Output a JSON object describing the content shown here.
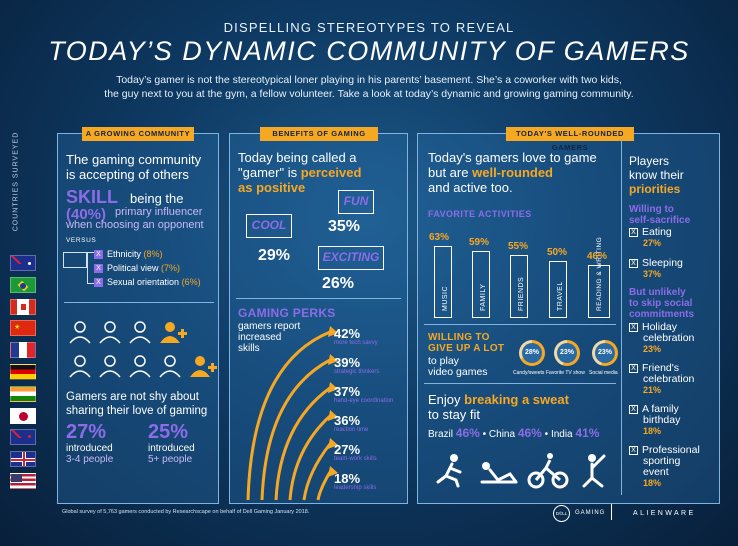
{
  "header": {
    "subtitle": "DISPELLING STEREOTYPES TO REVEAL",
    "title": "TODAY’S DYNAMIC COMMUNITY OF GAMERS",
    "intro_line1": "Today’s gamer is not the stereotypical loner playing in his parents’ basement. She’s a coworker with two kids,",
    "intro_line2": "the guy next to you at the gym, a fellow volunteer. Take a look at today’s dynamic and growing gaming community."
  },
  "side": {
    "label": "COUNTRIES SURVEYED",
    "flags": [
      "australia-flag",
      "brazil-flag",
      "canada-flag",
      "china-flag",
      "france-flag",
      "germany-flag",
      "india-flag",
      "japan-flag",
      "new-zealand-flag",
      "uk-flag",
      "usa-flag"
    ]
  },
  "community": {
    "tag": "A GROWING COMMUNITY",
    "heading_line1": "The gaming community",
    "heading_line2": "is accepting of others",
    "skill_word": "SKILL",
    "skill_text1": "being the",
    "skill_pct": "(40%)",
    "skill_text2": "primary influencer",
    "skill_text3": "when choosing an opponent",
    "versus": "VERSUS",
    "factors": [
      {
        "label": "Ethnicity",
        "value": "(8%)"
      },
      {
        "label": "Political view",
        "value": "(7%)"
      },
      {
        "label": "Sexual orientation",
        "value": "(6%)"
      }
    ],
    "share_line1": "Gamers are not shy about",
    "share_line2": "sharing their love of gaming",
    "stat1_pct": "27%",
    "stat1_line1": "introduced",
    "stat1_line2": "3-4 people",
    "stat2_pct": "25%",
    "stat2_line1": "introduced",
    "stat2_line2": "5+ people"
  },
  "benefits": {
    "tag": "BENEFITS OF GAMING",
    "line1": "Today being called a",
    "line2_pre": "\"gamer\" is",
    "line2_hl": "perceived",
    "line3_hl": "as positive",
    "words": [
      {
        "word": "COOL",
        "pct": "29%"
      },
      {
        "word": "FUN",
        "pct": "35%"
      },
      {
        "word": "EXCITING",
        "pct": "26%"
      }
    ],
    "perks_title": "GAMING PERKS",
    "perks_sub1": "gamers report",
    "perks_sub2": "increased",
    "perks_sub3": "skills",
    "perks": [
      {
        "pct": "42%",
        "label": "more tech savvy"
      },
      {
        "pct": "39%",
        "label": "strategic thinkers"
      },
      {
        "pct": "37%",
        "label": "hand-eye coordination"
      },
      {
        "pct": "36%",
        "label": "reaction time"
      },
      {
        "pct": "27%",
        "label": "team-work skills"
      },
      {
        "pct": "18%",
        "label": "leadership skills"
      }
    ]
  },
  "rounded": {
    "tag": "TODAY'S WELL-ROUNDED GAMERS",
    "line1": "Today's gamers love to game",
    "line2_pre": "but are",
    "line2_hl": "well-rounded",
    "line3": "and active too.",
    "activities_title": "FAVORITE ACTIVITIES",
    "activities": [
      {
        "label": "MUSIC",
        "pct": "63%",
        "value": 63
      },
      {
        "label": "FAMILY",
        "pct": "59%",
        "value": 59
      },
      {
        "label": "FRIENDS",
        "pct": "55%",
        "value": 55
      },
      {
        "label": "TRAVEL",
        "pct": "50%",
        "value": 50
      },
      {
        "label": "READING & WRITING",
        "pct": "46%",
        "value": 46
      }
    ],
    "willing_title1": "WILLING TO",
    "willing_title2": "GIVE UP A LOT",
    "willing_sub1": "to play",
    "willing_sub2": "video games",
    "giveups": [
      {
        "pct": "28%",
        "label": "Candy/sweets",
        "value": 28
      },
      {
        "pct": "23%",
        "label": "Favorite TV show",
        "value": 23
      },
      {
        "pct": "23%",
        "label": "Social media",
        "value": 23
      }
    ],
    "fit_pre": "Enjoy",
    "fit_hl": "breaking a sweat",
    "fit_post": "to stay fit",
    "fit_countries": [
      {
        "name": "Brazil",
        "pct": "46%"
      },
      {
        "name": "China",
        "pct": "46%"
      },
      {
        "name": "India",
        "pct": "41%"
      }
    ],
    "fit_separator": "•",
    "fit_icons": [
      "running-icon",
      "situps-icon",
      "cycling-icon",
      "yoga-icon"
    ]
  },
  "priorities": {
    "line1": "Players",
    "line2": "know their",
    "line3_hl": "priorities",
    "sacrifice_title1": "Willing to",
    "sacrifice_title2": "self-sacrifice",
    "sacrifice": [
      {
        "label": "Eating",
        "pct": "27%"
      },
      {
        "label": "Sleeping",
        "pct": "37%"
      }
    ],
    "unlikely_title1": "But unlikely",
    "unlikely_title2": "to skip social",
    "unlikely_title3": "commitments",
    "unlikely": [
      {
        "line1": "Holiday",
        "line2": "celebration",
        "pct": "23%"
      },
      {
        "line1": "Friend's",
        "line2": "celebration",
        "pct": "21%"
      },
      {
        "line1": "A family",
        "line2": "birthday",
        "pct": "18%"
      },
      {
        "line1": "Professional",
        "line2": "sporting",
        "line3": "event",
        "pct": "18%"
      }
    ],
    "check_glyph": "X"
  },
  "footer": {
    "note": "Global survey of 5,763 gamers conducted by Researchscape on behalf of Dell Gaming January 2018.",
    "dell": "D©LL",
    "gaming": "GAMING",
    "alienware": "ALIENWARE"
  },
  "colors": {
    "accent": "#f7a823",
    "purple": "#8c6ce8",
    "panel_border": "#7fb4e0"
  }
}
